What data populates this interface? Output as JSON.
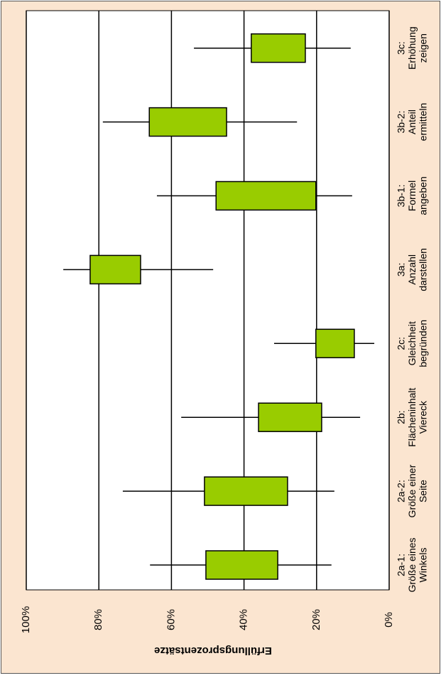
{
  "chart_data": {
    "type": "box",
    "y_label": "Erfüllungsprozentsätze",
    "categories": [
      [
        "2a-1:",
        "Größe eines",
        "Winkels"
      ],
      [
        "2a-2:",
        "Größe einer",
        "Seite"
      ],
      [
        "2b:",
        "Flächeninhalt",
        "Viereck"
      ],
      [
        "2c:",
        "Gleichheit",
        "begründen"
      ],
      [
        "3a:",
        "Anzahl",
        "darstellen"
      ],
      [
        "3b-1:",
        "Formel",
        "angeben"
      ],
      [
        "3b-2:",
        "Anteil",
        "ermitteln"
      ],
      [
        "3c:",
        "Erhöhung",
        "zeigen"
      ]
    ],
    "low": [
      15.9,
      15.1,
      8.0,
      4.1,
      48.5,
      10.2,
      25.4,
      10.6
    ],
    "box_low": [
      30.7,
      28.0,
      18.6,
      9.6,
      68.5,
      20.2,
      44.8,
      23.1
    ],
    "box_high": [
      50.5,
      50.9,
      36.0,
      20.2,
      82.4,
      47.7,
      66.1,
      38.0
    ],
    "high": [
      65.9,
      73.4,
      57.3,
      31.7,
      89.8,
      64.0,
      78.9,
      53.8
    ],
    "color": "#99cc00",
    "ylim": [
      0,
      100
    ],
    "yticks": [
      {
        "value": 0,
        "label": "0%"
      },
      {
        "value": 20,
        "label": "20%"
      },
      {
        "value": 40,
        "label": "40%"
      },
      {
        "value": 60,
        "label": "60%"
      },
      {
        "value": 80,
        "label": "80%"
      },
      {
        "value": 100,
        "label": "100%"
      }
    ],
    "grid": true
  }
}
